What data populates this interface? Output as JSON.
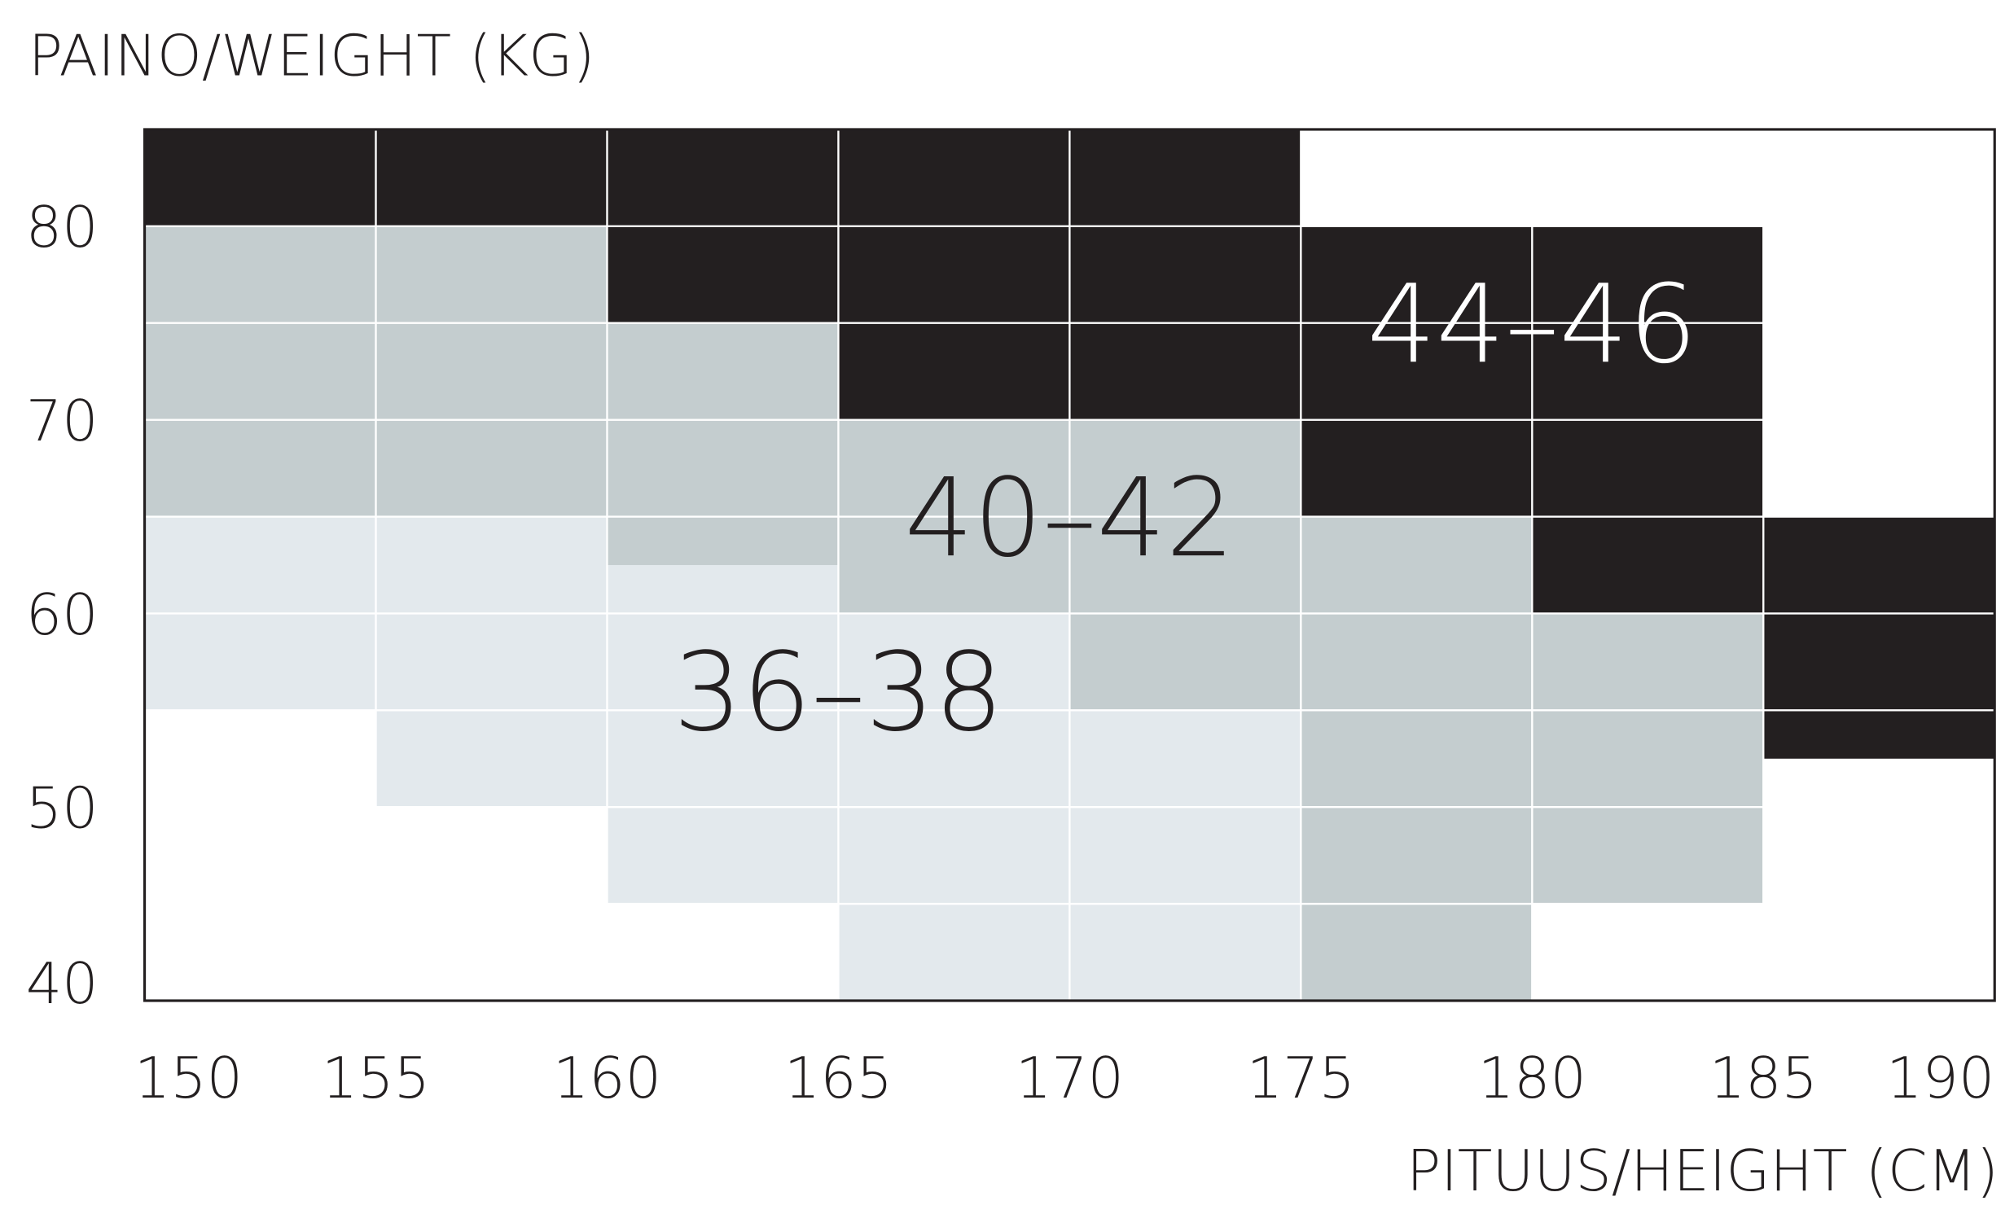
{
  "chart_data": {
    "type": "range-columns",
    "y_axis_label": "PAINO/WEIGHT (KG)",
    "x_axis_label": "PITUUS/HEIGHT (CM)",
    "xlim": [
      150,
      190
    ],
    "xticks": [
      150,
      155,
      160,
      165,
      170,
      175,
      180,
      185,
      190
    ],
    "ylim": [
      40,
      85
    ],
    "yticks": [
      40,
      50,
      60,
      70,
      80
    ],
    "ygrid": [
      40,
      45,
      50,
      55,
      60,
      65,
      70,
      75,
      80,
      85
    ],
    "grid": true,
    "series": [
      {
        "name": "36–38",
        "color": "#e3e9ed",
        "text_color": "#231f20",
        "columns": [
          {
            "x": [
              150,
              155
            ],
            "y": [
              55,
              65
            ]
          },
          {
            "x": [
              155,
              160
            ],
            "y": [
              50,
              65
            ]
          },
          {
            "x": [
              160,
              165
            ],
            "y": [
              45,
              62.5
            ]
          },
          {
            "x": [
              165,
              170
            ],
            "y": [
              40,
              60
            ]
          },
          {
            "x": [
              170,
              175
            ],
            "y": [
              40,
              55
            ]
          }
        ]
      },
      {
        "name": "40–42",
        "color": "#c4cdcf",
        "text_color": "#231f20",
        "columns": [
          {
            "x": [
              150,
              155
            ],
            "y": [
              65,
              80
            ]
          },
          {
            "x": [
              155,
              160
            ],
            "y": [
              65,
              80
            ]
          },
          {
            "x": [
              160,
              165
            ],
            "y": [
              62.5,
              75
            ]
          },
          {
            "x": [
              165,
              170
            ],
            "y": [
              60,
              70
            ]
          },
          {
            "x": [
              170,
              175
            ],
            "y": [
              55,
              70
            ]
          },
          {
            "x": [
              175,
              180
            ],
            "y": [
              40,
              65
            ]
          },
          {
            "x": [
              180,
              185
            ],
            "y": [
              45,
              60
            ]
          }
        ]
      },
      {
        "name": "44–46",
        "color": "#231f20",
        "text_color": "#ffffff",
        "columns": [
          {
            "x": [
              150,
              155
            ],
            "y": [
              80,
              85
            ]
          },
          {
            "x": [
              155,
              160
            ],
            "y": [
              80,
              85
            ]
          },
          {
            "x": [
              160,
              165
            ],
            "y": [
              75,
              85
            ]
          },
          {
            "x": [
              165,
              170
            ],
            "y": [
              70,
              85
            ]
          },
          {
            "x": [
              170,
              175
            ],
            "y": [
              70,
              85
            ]
          },
          {
            "x": [
              175,
              180
            ],
            "y": [
              65,
              80
            ]
          },
          {
            "x": [
              180,
              185
            ],
            "y": [
              60,
              80
            ]
          },
          {
            "x": [
              185,
              190
            ],
            "y": [
              52.5,
              65
            ]
          }
        ]
      }
    ]
  }
}
